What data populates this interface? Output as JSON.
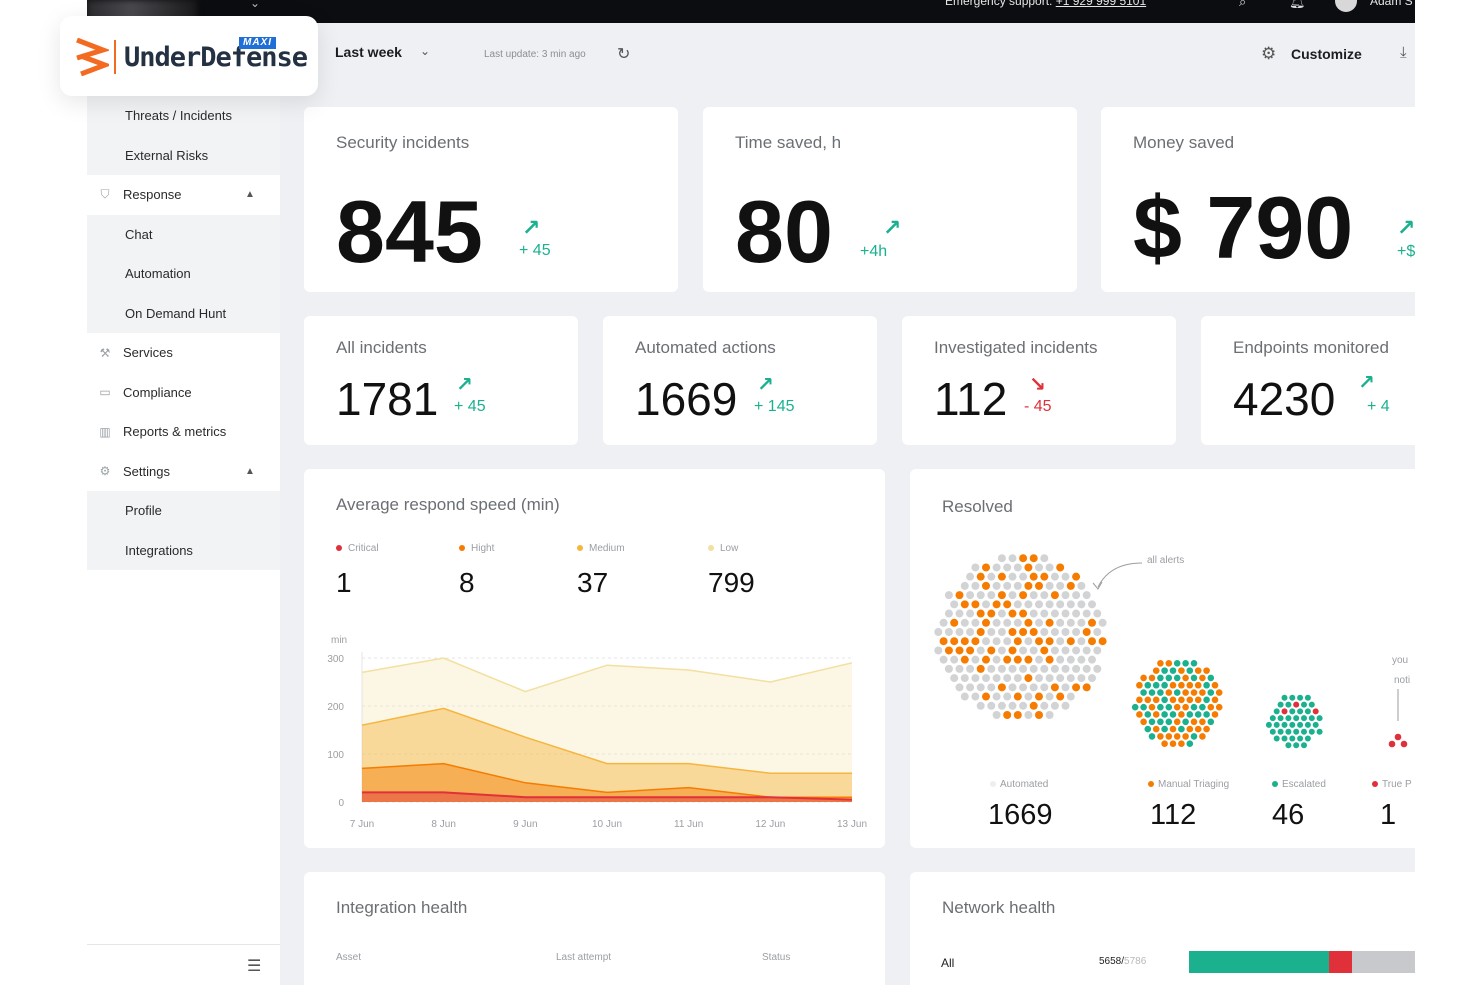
{
  "topbar": {
    "emergency_label": "Emergency support:",
    "emergency_phone": "+1 929 999 5101",
    "user_name": "Adam S"
  },
  "logo": {
    "text": "UnderDefense",
    "badge": "MAXI"
  },
  "header": {
    "period": "Last week",
    "last_update": "Last update: 3 min ago",
    "customize": "Customize"
  },
  "sidebar": {
    "items": [
      {
        "label": "Threats / Incidents",
        "type": "sub"
      },
      {
        "label": "External Risks",
        "type": "sub"
      },
      {
        "label": "Response",
        "type": "main",
        "icon": "shield-check-icon",
        "expanded": true
      },
      {
        "label": "Chat",
        "type": "sub"
      },
      {
        "label": "Automation",
        "type": "sub"
      },
      {
        "label": "On Demand Hunt",
        "type": "sub"
      },
      {
        "label": "Services",
        "type": "main",
        "icon": "wrench-icon"
      },
      {
        "label": "Compliance",
        "type": "main",
        "icon": "folder-icon"
      },
      {
        "label": "Reports & metrics",
        "type": "main",
        "icon": "bar-chart-icon"
      },
      {
        "label": "Settings",
        "type": "main",
        "icon": "gear-icon",
        "expanded": true
      },
      {
        "label": "Profile",
        "type": "sub"
      },
      {
        "label": "Integrations",
        "type": "sub"
      }
    ]
  },
  "kpis_top": [
    {
      "title": "Security incidents",
      "value": "845",
      "delta": "+ 45",
      "trend": "up"
    },
    {
      "title": "Time saved, h",
      "value": "80",
      "delta": "+4h",
      "trend": "up"
    },
    {
      "title": "Money saved",
      "value": "$ 790",
      "delta": "+$",
      "trend": "up"
    }
  ],
  "kpis_mid": [
    {
      "title": "All incidents",
      "value": "1781",
      "delta": "+ 45",
      "trend": "up"
    },
    {
      "title": "Automated actions",
      "value": "1669",
      "delta": "+ 145",
      "trend": "up"
    },
    {
      "title": "Investigated incidents",
      "value": "112",
      "delta": "- 45",
      "trend": "down"
    },
    {
      "title": "Endpoints monitored",
      "value": "4230",
      "delta": "+ 4",
      "trend": "up"
    }
  ],
  "speed": {
    "title": "Average respond speed (min)",
    "legend": [
      {
        "label": "Critical",
        "value": "1",
        "color": "#e0303a"
      },
      {
        "label": "Hight",
        "value": "8",
        "color": "#f57c00"
      },
      {
        "label": "Medium",
        "value": "37",
        "color": "#f5b53f"
      },
      {
        "label": "Low",
        "value": "799",
        "color": "#f3dfa0"
      }
    ]
  },
  "chart_data": {
    "type": "area",
    "title": "Average respond speed (min)",
    "ylabel": "min",
    "ylim": [
      0,
      300
    ],
    "yticks": [
      "300",
      "200",
      "100",
      "0"
    ],
    "categories": [
      "7 Jun",
      "8 Jun",
      "9 Jun",
      "10 Jun",
      "11 Jun",
      "12 Jun",
      "13 Jun"
    ],
    "series": [
      {
        "name": "Low",
        "color": "#f3dfa0",
        "values": [
          270,
          300,
          230,
          285,
          275,
          250,
          290
        ]
      },
      {
        "name": "Medium",
        "color": "#f5b53f",
        "values": [
          160,
          195,
          135,
          80,
          80,
          60,
          60
        ]
      },
      {
        "name": "Hight",
        "color": "#f57c00",
        "values": [
          70,
          80,
          40,
          20,
          30,
          10,
          10
        ]
      },
      {
        "name": "Critical",
        "color": "#e0303a",
        "values": [
          20,
          20,
          10,
          10,
          10,
          10,
          5
        ]
      }
    ]
  },
  "resolved": {
    "title": "Resolved",
    "annotation": "all alerts",
    "annotation2a": "you",
    "annotation2b": "noti",
    "groups": [
      {
        "label": "Automated",
        "value": "1669",
        "color": "#dddddd"
      },
      {
        "label": "Manual Triaging",
        "value": "112",
        "color": "#f57c00"
      },
      {
        "label": "Escalated",
        "value": "46",
        "color": "#1bb18f"
      },
      {
        "label": "True P",
        "value": "1",
        "color": "#e0303a"
      }
    ]
  },
  "integration": {
    "title": "Integration health",
    "columns": [
      "Asset",
      "Last attempt",
      "Status"
    ]
  },
  "network": {
    "title": "Network health",
    "row_label": "All",
    "count": "5658/",
    "total": "5786",
    "segments": {
      "healthy": 0.62,
      "critical": 0.1
    }
  }
}
